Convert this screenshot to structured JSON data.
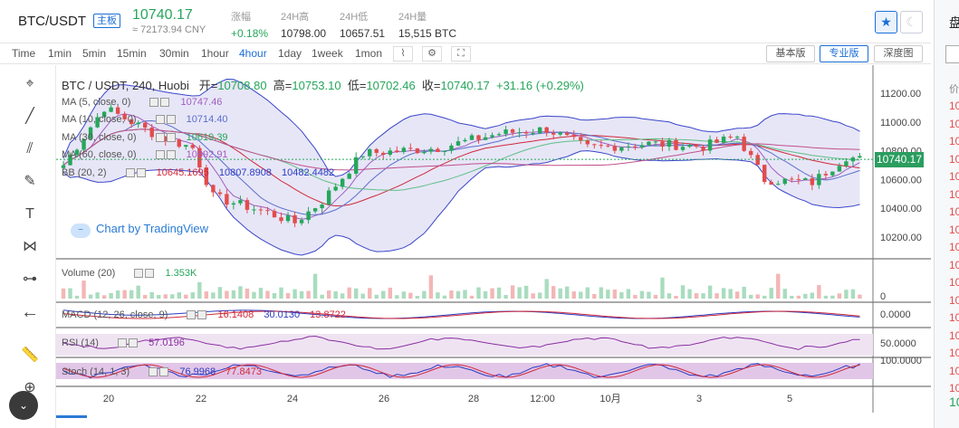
{
  "header": {
    "symbol": "BTC/USDT",
    "tag": "主板",
    "last": "10740.17",
    "last_cny": "≈ 72173.94 CNY",
    "stats": [
      {
        "label": "涨幅",
        "value": "+0.18%"
      },
      {
        "label": "24H高",
        "value": "10798.00"
      },
      {
        "label": "24H低",
        "value": "10657.51"
      },
      {
        "label": "24H量",
        "value": "15,515 BTC"
      }
    ]
  },
  "timeframes": [
    "Time",
    "1min",
    "5min",
    "15min",
    "30min",
    "1hour",
    "4hour",
    "1day",
    "1week",
    "1mon"
  ],
  "active_timeframe": "4hour",
  "view_buttons": [
    "基本版",
    "专业版",
    "深度图"
  ],
  "active_view": "专业版",
  "legend": {
    "title": "BTC / USDT, 240, Huobi",
    "o_label": "开=",
    "o": "10708.80",
    "h_label": "高=",
    "h": "10753.10",
    "l_label": "低=",
    "l": "10702.46",
    "c_label": "收=",
    "c": "10740.17",
    "chg": "+31.16 (+0.29%)"
  },
  "indicators": {
    "ma5": {
      "name": "MA (5, close, 0)",
      "value": "10747.46"
    },
    "ma10": {
      "name": "MA (10, close, 0)",
      "value": "10714.40"
    },
    "ma30": {
      "name": "MA (30, close, 0)",
      "value": "10619.39"
    },
    "ma60": {
      "name": "MA (60, close, 0)",
      "value": "10692.91"
    },
    "bb": {
      "name": "BB (20, 2)",
      "v1": "10645.1695",
      "v2": "10807.8908",
      "v3": "10482.4482"
    },
    "volume": {
      "name": "Volume (20)",
      "value": "1.353K"
    },
    "macd": {
      "name": "MACD (12, 26, close, 9)",
      "v1": "16.1408",
      "v2": "30.0130",
      "v3": "13.8722"
    },
    "rsi": {
      "name": "RSI (14)",
      "value": "57.0196"
    },
    "stoch": {
      "name": "Stoch (14, 1, 3)",
      "v1": "76.9968",
      "v2": "77.8473"
    }
  },
  "watermark": "Chart by TradingView",
  "price_axis": [
    "11200.00",
    "11000.00",
    "10800.00",
    "10600.00",
    "10400.00",
    "10200.00"
  ],
  "last_price_label": "10740.17",
  "volume_axis": "0",
  "macd_axis": "0.0000",
  "rsi_axis": "50.0000",
  "stoch_axis": "100.0000",
  "x_axis": [
    "20",
    "22",
    "24",
    "26",
    "28",
    "12:00",
    "10月",
    "3",
    "5"
  ],
  "side": {
    "title": "盘",
    "col": "价",
    "rows": [
      "10",
      "10",
      "10",
      "10",
      "10",
      "10",
      "10",
      "10",
      "10",
      "10",
      "10",
      "10",
      "10",
      "10",
      "10",
      "10",
      "10"
    ],
    "footer": "10"
  },
  "colors": {
    "up": "#26a65b",
    "down": "#e24c4c",
    "bb_fill": "#c9c8ee",
    "accent": "#1b6fd8"
  }
}
